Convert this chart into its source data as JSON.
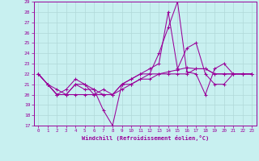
{
  "xlabel": "Windchill (Refroidissement éolien,°C)",
  "bg_color": "#c8f0f0",
  "line_color": "#990099",
  "grid_color": "#b0d8d8",
  "xmin": -0.5,
  "xmax": 23.5,
  "ymin": 17,
  "ymax": 29,
  "yticks": [
    17,
    18,
    19,
    20,
    21,
    22,
    23,
    24,
    25,
    26,
    27,
    28,
    29
  ],
  "xticks": [
    0,
    1,
    2,
    3,
    4,
    5,
    6,
    7,
    8,
    9,
    10,
    11,
    12,
    13,
    14,
    15,
    16,
    17,
    18,
    19,
    20,
    21,
    22,
    23
  ],
  "series": [
    {
      "x": [
        0,
        1,
        2,
        3,
        4,
        5,
        6,
        7,
        8,
        9,
        10,
        11,
        12,
        13,
        14,
        15,
        16,
        17,
        18,
        19,
        20,
        21,
        22,
        23
      ],
      "y": [
        22,
        21,
        20,
        20.5,
        21.5,
        21,
        20.5,
        18.5,
        17,
        21,
        21.5,
        22,
        22,
        24,
        26.5,
        29,
        22.2,
        22,
        20,
        22.5,
        23,
        22,
        22,
        22
      ]
    },
    {
      "x": [
        0,
        1,
        2,
        3,
        4,
        5,
        6,
        7,
        8,
        9,
        10,
        11,
        12,
        13,
        14,
        15,
        16,
        17,
        18,
        19,
        20,
        21,
        22,
        23
      ],
      "y": [
        22,
        21,
        20,
        20,
        21,
        21,
        20,
        20.5,
        20,
        21,
        21.5,
        22,
        22.5,
        23,
        28,
        22.5,
        24.5,
        25,
        22,
        21,
        21,
        22,
        22,
        22
      ]
    },
    {
      "x": [
        0,
        1,
        2,
        3,
        4,
        5,
        6,
        7,
        8,
        9,
        10,
        11,
        12,
        13,
        14,
        15,
        16,
        17,
        18,
        19,
        20,
        21,
        22,
        23
      ],
      "y": [
        22,
        21,
        20.5,
        20,
        21,
        20.5,
        20.5,
        20,
        20,
        21,
        21,
        21.5,
        22,
        22,
        22.2,
        22.4,
        22.6,
        22.5,
        22.5,
        22,
        22,
        22,
        22,
        22
      ]
    },
    {
      "x": [
        0,
        1,
        2,
        3,
        4,
        5,
        6,
        7,
        8,
        9,
        10,
        11,
        12,
        13,
        14,
        15,
        16,
        17,
        18,
        19,
        20,
        21,
        22,
        23
      ],
      "y": [
        22,
        21,
        20,
        20,
        20,
        20,
        20,
        20,
        20,
        20.5,
        21,
        21.5,
        21.5,
        22,
        22,
        22,
        22,
        22.5,
        22.5,
        22,
        22,
        22,
        22,
        22
      ]
    }
  ]
}
